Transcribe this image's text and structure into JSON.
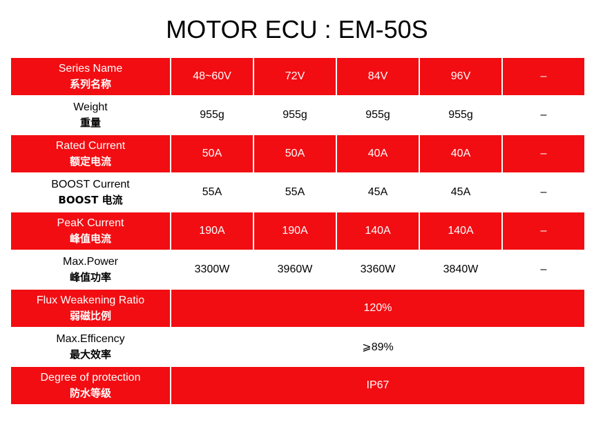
{
  "title": "MOTOR ECU : EM-50S",
  "rows": [
    {
      "label_en": "Series Name",
      "label_cn": "系列名称",
      "red": true,
      "values": [
        "48~60V",
        "72V",
        "84V",
        "96V",
        "–"
      ]
    },
    {
      "label_en": "Weight",
      "label_cn": "重量",
      "red": false,
      "values": [
        "955g",
        "955g",
        "955g",
        "955g",
        "–"
      ]
    },
    {
      "label_en": "Rated Current",
      "label_cn": "额定电流",
      "red": true,
      "values": [
        "50A",
        "50A",
        "40A",
        "40A",
        "–"
      ]
    },
    {
      "label_en": "BOOST Current",
      "label_cn": "BOOST  电流",
      "red": false,
      "values": [
        "55A",
        "55A",
        "45A",
        "45A",
        "–"
      ]
    },
    {
      "label_en": "PeaK Current",
      "label_cn": "峰值电流",
      "red": true,
      "values": [
        "190A",
        "190A",
        "140A",
        "140A",
        "–"
      ]
    },
    {
      "label_en": "Max.Power",
      "label_cn": "峰值功率",
      "red": false,
      "values": [
        "3300W",
        "3960W",
        "3360W",
        "3840W",
        "–"
      ]
    },
    {
      "label_en": "Flux Weakening Ratio",
      "label_cn": "弱磁比例",
      "red": true,
      "value": "120%"
    },
    {
      "label_en": "Max.Efficency",
      "label_cn": "最大效率",
      "red": false,
      "value": "⩾89%"
    },
    {
      "label_en": "Degree of protection",
      "label_cn": "防水等级",
      "red": true,
      "value": "IP67"
    }
  ],
  "colors": {
    "accent_red": "#f20d12",
    "text_on_red": "#ffffff",
    "text": "#000000"
  }
}
